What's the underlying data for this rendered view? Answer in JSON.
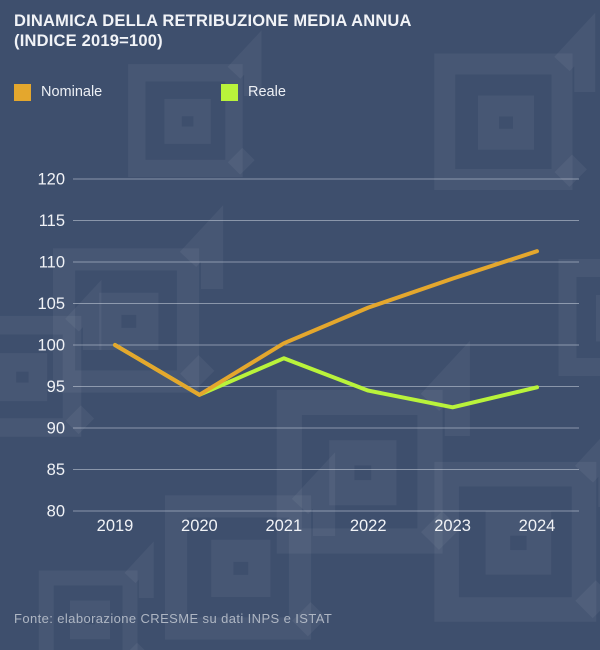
{
  "title": {
    "line1": "DINAMICA DELLA RETRIBUZIONE MEDIA ANNUA",
    "line2": "(INDICE 2019=100)"
  },
  "legend": [
    {
      "label": "Nominale",
      "color": "#E4A72D"
    },
    {
      "label": "Reale",
      "color": "#B9F33B"
    }
  ],
  "footer": "Fonte: elaborazione CRESME su dati INPS e ISTAT",
  "colors": {
    "background": "#3E4F6D",
    "watermark": "rgba(255,255,255,0.05)",
    "gridline": "rgba(214,221,232,0.5)",
    "tick_text": "#F0F2F6"
  },
  "chart_data": {
    "type": "line",
    "title": "DINAMICA DELLA RETRIBUZIONE MEDIA ANNUA (INDICE 2019=100)",
    "categories": [
      "2019",
      "2020",
      "2021",
      "2022",
      "2023",
      "2024"
    ],
    "series": [
      {
        "name": "Nominale",
        "color": "#E4A72D",
        "values": [
          100,
          94,
          100.2,
          104.5,
          108,
          111.3
        ]
      },
      {
        "name": "Reale",
        "color": "#B9F33B",
        "values": [
          100,
          94,
          98.4,
          94.5,
          92.5,
          94.9
        ]
      }
    ],
    "ylim": [
      80,
      120
    ],
    "ytick_step": 5,
    "grid": true,
    "legend_position": "top-left",
    "source": "Fonte: elaborazione CRESME su dati INPS e ISTAT"
  }
}
